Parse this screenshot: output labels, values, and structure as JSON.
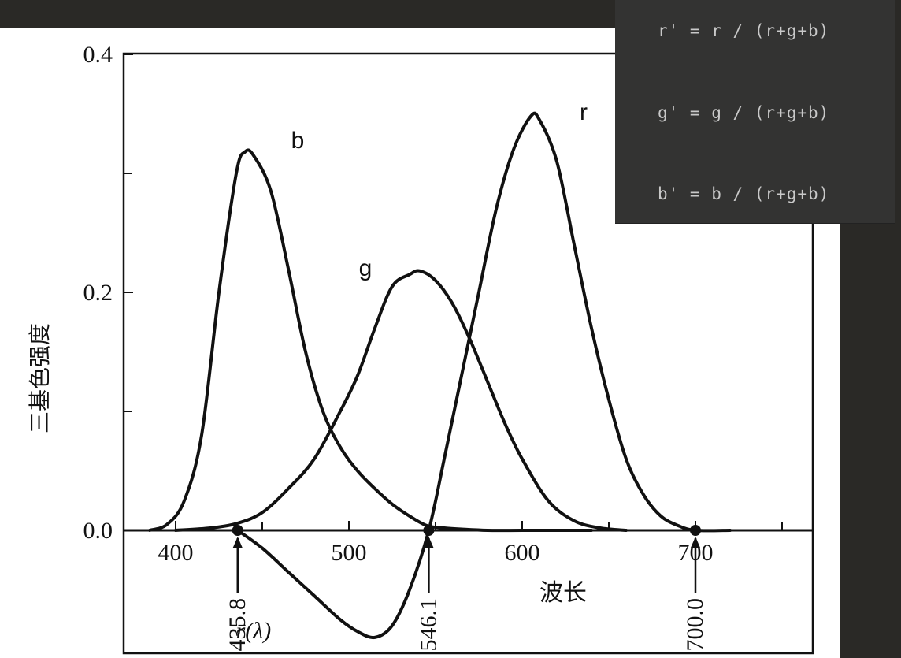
{
  "formulas": [
    "r' = r / (r+g+b)",
    "g' = g / (r+g+b)",
    "b' = b / (r+g+b)"
  ],
  "chart_data": {
    "type": "line",
    "title": "",
    "xlabel": "波长",
    "ylabel": "三基色强度",
    "xlim": [
      370,
      750
    ],
    "ylim": [
      -0.1,
      0.4
    ],
    "x_ticks": [
      400,
      500,
      600,
      700
    ],
    "y_ticks": [
      0.0,
      0.2,
      0.4
    ],
    "y_minor_ticks": [
      0.1,
      0.3
    ],
    "grid": false,
    "series": [
      {
        "name": "b",
        "x": [
          385,
          395,
          405,
          415,
          425,
          435,
          440,
          445,
          455,
          465,
          475,
          485,
          495,
          505,
          515,
          525,
          535,
          545,
          555,
          565,
          580,
          600,
          620,
          640
        ],
        "y": [
          0.0,
          0.005,
          0.025,
          0.08,
          0.2,
          0.3,
          0.318,
          0.315,
          0.285,
          0.22,
          0.15,
          0.1,
          0.07,
          0.05,
          0.035,
          0.022,
          0.012,
          0.004,
          0.002,
          0.001,
          0.0,
          0.0,
          0.0,
          0.0
        ]
      },
      {
        "name": "g",
        "x": [
          400,
          420,
          435.8,
          450,
          465,
          480,
          495,
          505,
          515,
          525,
          535,
          541,
          550,
          560,
          570,
          580,
          590,
          600,
          615,
          630,
          645,
          660
        ],
        "y": [
          0.0,
          0.002,
          0.006,
          0.015,
          0.035,
          0.06,
          0.1,
          0.13,
          0.17,
          0.205,
          0.215,
          0.218,
          0.21,
          0.19,
          0.16,
          0.125,
          0.09,
          0.06,
          0.025,
          0.008,
          0.002,
          0.0
        ]
      },
      {
        "name": "r",
        "x": [
          435.8,
          450,
          465,
          480,
          495,
          505,
          515,
          525,
          535,
          546.1,
          555,
          565,
          575,
          585,
          595,
          605,
          610,
          620,
          630,
          640,
          650,
          660,
          670,
          680,
          690,
          700,
          720
        ],
        "y": [
          0.0,
          -0.015,
          -0.035,
          -0.055,
          -0.075,
          -0.085,
          -0.09,
          -0.08,
          -0.05,
          0.0,
          0.06,
          0.13,
          0.2,
          0.27,
          0.32,
          0.348,
          0.345,
          0.31,
          0.24,
          0.17,
          0.11,
          0.06,
          0.03,
          0.012,
          0.004,
          0.0,
          0.0
        ]
      }
    ],
    "annotations": [
      {
        "text": "435.8",
        "x": 435.8
      },
      {
        "text": "546.1",
        "x": 546.1
      },
      {
        "text": "700.0",
        "x": 700.0
      },
      {
        "text": "r̄(λ)",
        "x": 478
      }
    ],
    "primary_points": [
      435.8,
      546.1,
      700.0
    ]
  }
}
